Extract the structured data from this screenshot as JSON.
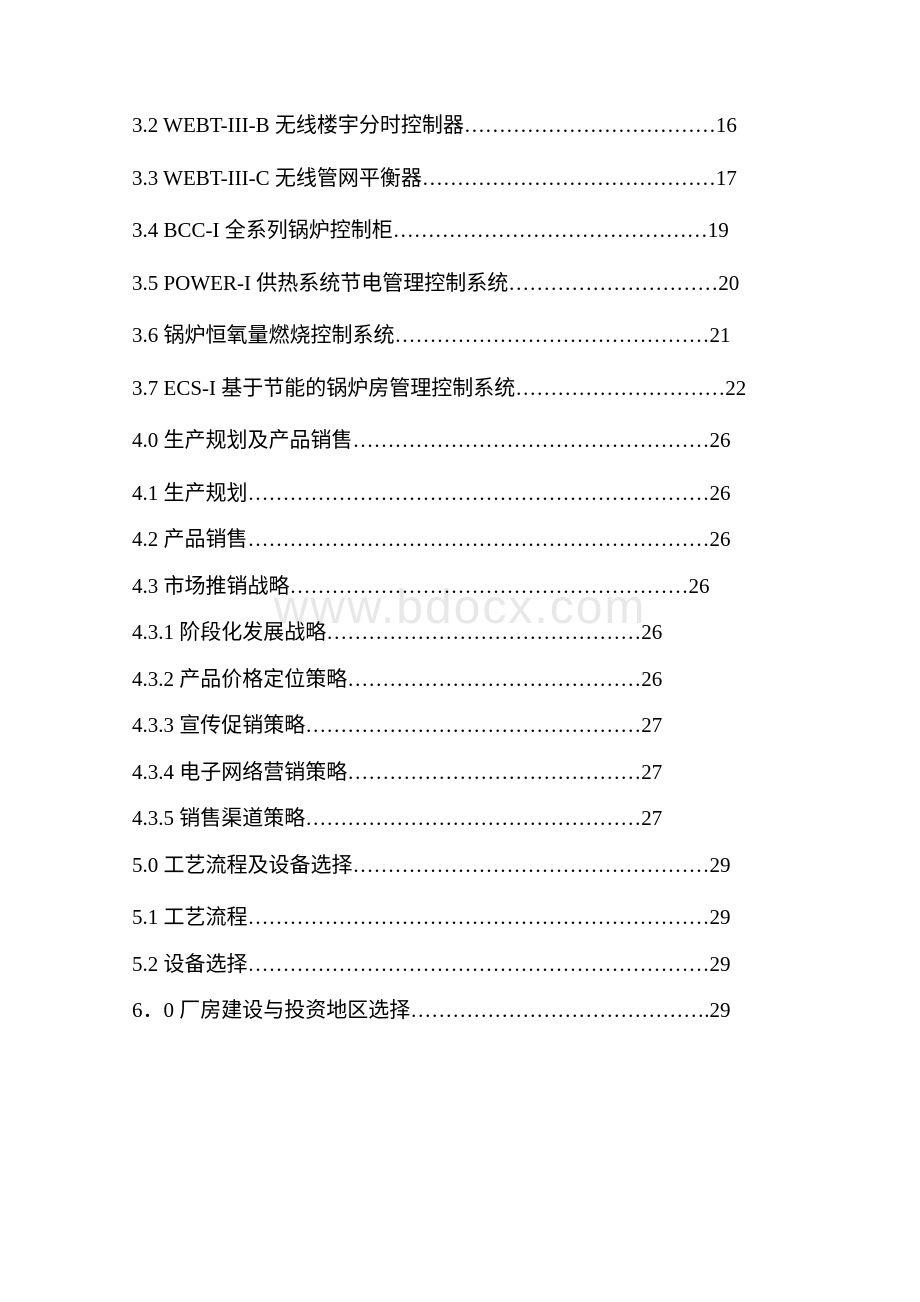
{
  "watermark": "www.bdocx.com",
  "entries": [
    {
      "text": "　　3.2 WEBT-III-B 无线楼宇分时控制器………………………………16",
      "multiline": true
    },
    {
      "text": "　　3.3 WEBT-III-C 无线管网平衡器……………………………………17",
      "multiline": true
    },
    {
      "text": "　　3.4 BCC-I 全系列锅炉控制柜………………………………………19",
      "multiline": true
    },
    {
      "text": "　　3.5 POWER-I 供热系统节电管理控制系统…………………………20",
      "multiline": true
    },
    {
      "text": "　　3.6 锅炉恒氧量燃烧控制系统………………………………………21",
      "multiline": true
    },
    {
      "text": "　　3.7 ECS-I 基于节能的锅炉房管理控制系统…………………………22",
      "multiline": true
    },
    {
      "text": "　　4.0 生产规划及产品销售……………………………………………26",
      "multiline": true
    },
    {
      "text": "　　4.1 生产规划…………………………………………………………26",
      "multiline": false
    },
    {
      "text": "　　4.2 产品销售…………………………………………………………26",
      "multiline": false
    },
    {
      "text": "　　4.3 市场推销战略…………………………………………………26",
      "multiline": false
    },
    {
      "text": "　　4.3.1 阶段化发展战略………………………………………26",
      "multiline": false
    },
    {
      "text": "　　4.3.2 产品价格定位策略……………………………………26",
      "multiline": false
    },
    {
      "text": "　　4.3.3 宣传促销策略…………………………………………27",
      "multiline": false
    },
    {
      "text": "　　4.3.4 电子网络营销策略……………………………………27",
      "multiline": false
    },
    {
      "text": "　　4.3.5 销售渠道策略…………………………………………27",
      "multiline": false
    },
    {
      "text": "　　5.0 工艺流程及设备选择……………………………………………29",
      "multiline": true
    },
    {
      "text": "　　5.1 工艺流程…………………………………………………………29",
      "multiline": false
    },
    {
      "text": "　　5.2 设备选择…………………………………………………………29",
      "multiline": false
    },
    {
      "text": "　　6．0 厂房建设与投资地区选择…………………………………….29",
      "multiline": true
    }
  ]
}
